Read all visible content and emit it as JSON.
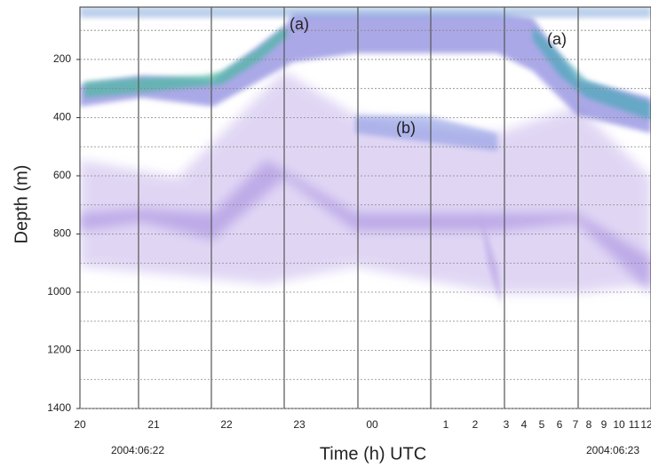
{
  "chart_data": {
    "type": "echogram",
    "y_label": "Depth (m)",
    "x_label": "Time (h)  UTC",
    "ylim": [
      1400,
      20
    ],
    "yticks": [
      200,
      400,
      600,
      800,
      1000,
      1200,
      1400
    ],
    "minor_yticks": [
      100,
      300,
      500,
      700,
      900,
      1100,
      1300
    ],
    "xtick_labels": [
      "20",
      "21",
      "22",
      "23",
      "00",
      "1",
      "2",
      "3",
      "4",
      "5",
      "6",
      "7",
      "8",
      "9",
      "10",
      "11",
      "12"
    ],
    "dates": [
      "2004:06:22",
      "2004:06:23"
    ],
    "annotations": [
      "(a)",
      "(a)",
      "(b)"
    ],
    "grid": true
  }
}
